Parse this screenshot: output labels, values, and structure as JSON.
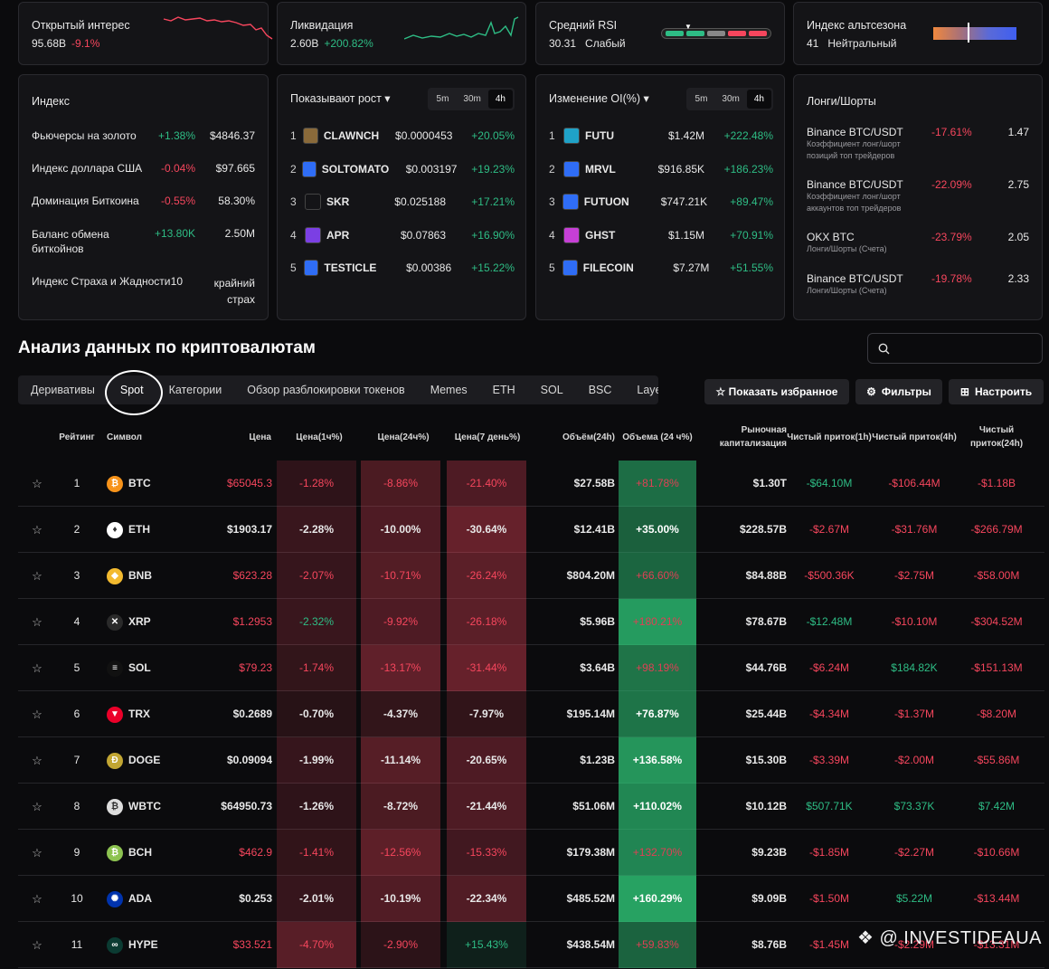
{
  "stats": [
    {
      "title": "Открытый интерес",
      "value": "95.68B",
      "change": "-9.1%",
      "dir": "dn"
    },
    {
      "title": "Ликвидация",
      "value": "2.60B",
      "change": "+200.82%",
      "dir": "up"
    },
    {
      "title": "Средний RSI",
      "value": "30.31",
      "change": "Слабый",
      "dir": "neutral"
    },
    {
      "title": "Индекс альтсезона",
      "value": "41",
      "change": "Нейтральный",
      "dir": "neutral"
    }
  ],
  "index_card": {
    "title": "Индекс",
    "rows": [
      {
        "name": "Фьючерсы на золото",
        "change": "+1.38%",
        "value": "$4846.37",
        "dir": "up"
      },
      {
        "name": "Индекс доллара США",
        "change": "-0.04%",
        "value": "$97.665",
        "dir": "dn"
      },
      {
        "name": "Доминация Биткоина",
        "change": "-0.55%",
        "value": "58.30%",
        "dir": "dn"
      },
      {
        "name": "Баланс обмена биткойнов",
        "change": "+13.80K",
        "value": "2.50M",
        "dir": "up"
      },
      {
        "name": "Индекс Страха и Жадности",
        "change": "10",
        "value": "крайний страх",
        "dir": "neutral"
      }
    ]
  },
  "gainers": {
    "title": "Показывают рост ▾",
    "tf": [
      "5m",
      "30m",
      "4h"
    ],
    "rows": [
      {
        "no": "1",
        "sym": "CLAWNCH",
        "price": "$0.0000453",
        "chg": "+20.05%",
        "color": "#8a6a3a"
      },
      {
        "no": "2",
        "sym": "SOLTOMATO",
        "price": "$0.003197",
        "chg": "+19.23%",
        "color": "#2f6df6"
      },
      {
        "no": "3",
        "sym": "SKR",
        "price": "$0.025188",
        "chg": "+17.21%",
        "color": "#141417"
      },
      {
        "no": "4",
        "sym": "APR",
        "price": "$0.07863",
        "chg": "+16.90%",
        "color": "#7b3fe4"
      },
      {
        "no": "5",
        "sym": "TESTICLE",
        "price": "$0.00386",
        "chg": "+15.22%",
        "color": "#2f6df6"
      }
    ]
  },
  "oi": {
    "title": "Изменение OI(%) ▾",
    "tf": [
      "5m",
      "30m",
      "4h"
    ],
    "rows": [
      {
        "no": "1",
        "sym": "FUTU",
        "price": "$1.42M",
        "chg": "+222.48%",
        "color": "#1fa2c8"
      },
      {
        "no": "2",
        "sym": "MRVL",
        "price": "$916.85K",
        "chg": "+186.23%",
        "color": "#2f6df6"
      },
      {
        "no": "3",
        "sym": "FUTUON",
        "price": "$747.21K",
        "chg": "+89.47%",
        "color": "#2f6df6"
      },
      {
        "no": "4",
        "sym": "GHST",
        "price": "$1.15M",
        "chg": "+70.91%",
        "color": "#c63fd6"
      },
      {
        "no": "5",
        "sym": "FILECOIN",
        "price": "$7.27M",
        "chg": "+51.55%",
        "color": "#2f6df6"
      }
    ]
  },
  "longshort": {
    "title": "Лонги/Шорты",
    "rows": [
      {
        "name": "Binance BTC/USDT",
        "sub": "Коэффициент лонг/шорт позиций топ трейдеров",
        "change": "-17.61%",
        "value": "1.47"
      },
      {
        "name": "Binance BTC/USDT",
        "sub": "Коэффициент лонг/шорт аккаунтов топ трейдеров",
        "change": "-22.09%",
        "value": "2.75"
      },
      {
        "name": "OKX BTC",
        "sub": "Лонги/Шорты (Счета)",
        "change": "-23.79%",
        "value": "2.05"
      },
      {
        "name": "Binance BTC/USDT",
        "sub": "Лонги/Шорты (Счета)",
        "change": "-19.78%",
        "value": "2.33"
      }
    ]
  },
  "section_title": "Анализ данных по криптовалютам",
  "tabs": [
    "Деривативы",
    "Spot",
    "Категории",
    "Обзор разблокировки токенов",
    "Memes",
    "ETH",
    "SOL",
    "BSC",
    "Layer ›"
  ],
  "buttons": {
    "favorites": "☆ Показать избранное",
    "filters": "Фильтры",
    "settings": "Настроить"
  },
  "headers": {
    "rank": "Рейтинг",
    "symbol": "Символ",
    "price": "Цена",
    "p1h": "Цена(1ч%)",
    "p24h": "Цена(24ч%)",
    "p7d": "Цена(7 день%)",
    "vol": "Объём(24h)",
    "volchg": "Объема (24 ч%)",
    "mcap": "Рыночная капитализация",
    "f1h": "Чистый приток(1h)",
    "f4h": "Чистый приток(4h)",
    "f24h": "Чистый приток(24h)"
  },
  "rows": [
    {
      "rank": "1",
      "sym": "BTC",
      "price": "$65045.3",
      "pdir": "dn",
      "p1h": "-1.28%",
      "p24h": "-8.86%",
      "p7d": "-21.40%",
      "vol": "$27.58B",
      "volchg": "+81.78%",
      "mcap": "$1.30T",
      "f1h": "-$64.10M",
      "f1hdir": "up",
      "f4h": "-$106.44M",
      "f24h": "-$1.18B",
      "icon": "#f7931a",
      "g": "₿"
    },
    {
      "rank": "2",
      "sym": "ETH",
      "price": "$1903.17",
      "pdir": "w",
      "p1h": "-2.28%",
      "p24h": "-10.00%",
      "p7d": "-30.64%",
      "vol": "$12.41B",
      "volchg": "+35.00%",
      "mcap": "$228.57B",
      "f1h": "-$2.67M",
      "f1hdir": "dn",
      "f4h": "-$31.76M",
      "f24h": "-$266.79M",
      "icon": "#ffffff",
      "g": "♦"
    },
    {
      "rank": "3",
      "sym": "BNB",
      "price": "$623.28",
      "pdir": "dn",
      "p1h": "-2.07%",
      "p24h": "-10.71%",
      "p7d": "-26.24%",
      "vol": "$804.20M",
      "volchg": "+66.60%",
      "mcap": "$84.88B",
      "f1h": "-$500.36K",
      "f1hdir": "dn",
      "f4h": "-$2.75M",
      "f24h": "-$58.00M",
      "icon": "#f3ba2f",
      "g": "◆"
    },
    {
      "rank": "4",
      "sym": "XRP",
      "price": "$1.2953",
      "pdir": "dn",
      "p1h": "-2.32%",
      "p24h": "-9.92%",
      "p7d": "-26.18%",
      "vol": "$5.96B",
      "volchg": "+180.21%",
      "mcap": "$78.67B",
      "f1h": "-$12.48M",
      "f1hdir": "up",
      "f4h": "-$10.10M",
      "f24h": "-$304.52M",
      "icon": "#2a2a2a",
      "g": "✕"
    },
    {
      "rank": "5",
      "sym": "SOL",
      "price": "$79.23",
      "pdir": "dn",
      "p1h": "-1.74%",
      "p24h": "-13.17%",
      "p7d": "-31.44%",
      "vol": "$3.64B",
      "volchg": "+98.19%",
      "mcap": "$44.76B",
      "f1h": "-$6.24M",
      "f1hdir": "dn",
      "f4h": "$184.82K",
      "f24h": "-$151.13M",
      "icon": "#111111",
      "g": "≡"
    },
    {
      "rank": "6",
      "sym": "TRX",
      "price": "$0.2689",
      "pdir": "w",
      "p1h": "-0.70%",
      "p24h": "-4.37%",
      "p7d": "-7.97%",
      "vol": "$195.14M",
      "volchg": "+76.87%",
      "mcap": "$25.44B",
      "f1h": "-$4.34M",
      "f1hdir": "dn",
      "f4h": "-$1.37M",
      "f24h": "-$8.20M",
      "icon": "#eb0029",
      "g": "▼"
    },
    {
      "rank": "7",
      "sym": "DOGE",
      "price": "$0.09094",
      "pdir": "w",
      "p1h": "-1.99%",
      "p24h": "-11.14%",
      "p7d": "-20.65%",
      "vol": "$1.23B",
      "volchg": "+136.58%",
      "mcap": "$15.30B",
      "f1h": "-$3.39M",
      "f1hdir": "dn",
      "f4h": "-$2.00M",
      "f24h": "-$55.86M",
      "icon": "#c2a633",
      "g": "Ð"
    },
    {
      "rank": "8",
      "sym": "WBTC",
      "price": "$64950.73",
      "pdir": "w",
      "p1h": "-1.26%",
      "p24h": "-8.72%",
      "p7d": "-21.44%",
      "vol": "$51.06M",
      "volchg": "+110.02%",
      "mcap": "$10.12B",
      "f1h": "$507.71K",
      "f1hdir": "up",
      "f4h": "$73.37K",
      "f24h": "$7.42M",
      "icon": "#dddddd",
      "g": "₿"
    },
    {
      "rank": "9",
      "sym": "BCH",
      "price": "$462.9",
      "pdir": "dn",
      "p1h": "-1.41%",
      "p24h": "-12.56%",
      "p7d": "-15.33%",
      "vol": "$179.38M",
      "volchg": "+132.70%",
      "mcap": "$9.23B",
      "f1h": "-$1.85M",
      "f1hdir": "dn",
      "f4h": "-$2.27M",
      "f24h": "-$10.66M",
      "icon": "#8dc351",
      "g": "₿"
    },
    {
      "rank": "10",
      "sym": "ADA",
      "price": "$0.253",
      "pdir": "w",
      "p1h": "-2.01%",
      "p24h": "-10.19%",
      "p7d": "-22.34%",
      "vol": "$485.52M",
      "volchg": "+160.29%",
      "mcap": "$9.09B",
      "f1h": "-$1.50M",
      "f1hdir": "dn",
      "f4h": "$5.22M",
      "f24h": "-$13.44M",
      "icon": "#0033ad",
      "g": "✺"
    },
    {
      "rank": "11",
      "sym": "HYPE",
      "price": "$33.521",
      "pdir": "dn",
      "p1h": "-4.70%",
      "p24h": "-2.90%",
      "p7d": "+15.43%",
      "vol": "$438.54M",
      "volchg": "+59.83%",
      "mcap": "$8.76B",
      "f1h": "-$1.45M",
      "f1hdir": "dn",
      "f4h": "-$2.29M",
      "f24h": "-$13.31M",
      "icon": "#0b3b32",
      "g": "∞"
    }
  ],
  "watermark": "@ INVESTIDEAUA"
}
